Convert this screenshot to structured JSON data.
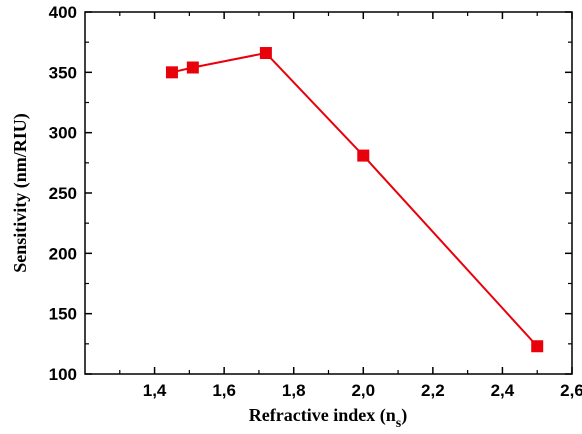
{
  "chart_data": {
    "type": "line",
    "title": "",
    "xlabel": "Refractive index (n",
    "xlabel_sub": "s",
    "xlabel_close": ")",
    "ylabel": "Sensitivity (nm/RIU)",
    "xlim": [
      1.2,
      2.6
    ],
    "ylim": [
      100,
      400
    ],
    "xticks": [
      1.4,
      1.6,
      1.8,
      2.0,
      2.2,
      2.4,
      2.6
    ],
    "xtick_labels": [
      "1,4",
      "1,6",
      "1,8",
      "2,0",
      "2,2",
      "2,4",
      "2,6"
    ],
    "yticks": [
      100,
      150,
      200,
      250,
      300,
      350,
      400
    ],
    "ytick_labels": [
      "100",
      "150",
      "200",
      "250",
      "300",
      "350",
      "400"
    ],
    "grid": false,
    "legend": "none",
    "series": [
      {
        "color": "#e8000b",
        "marker": "square",
        "x": [
          1.45,
          1.51,
          1.72,
          2.0,
          2.5
        ],
        "y": [
          350,
          354,
          366,
          281,
          123
        ]
      }
    ]
  }
}
